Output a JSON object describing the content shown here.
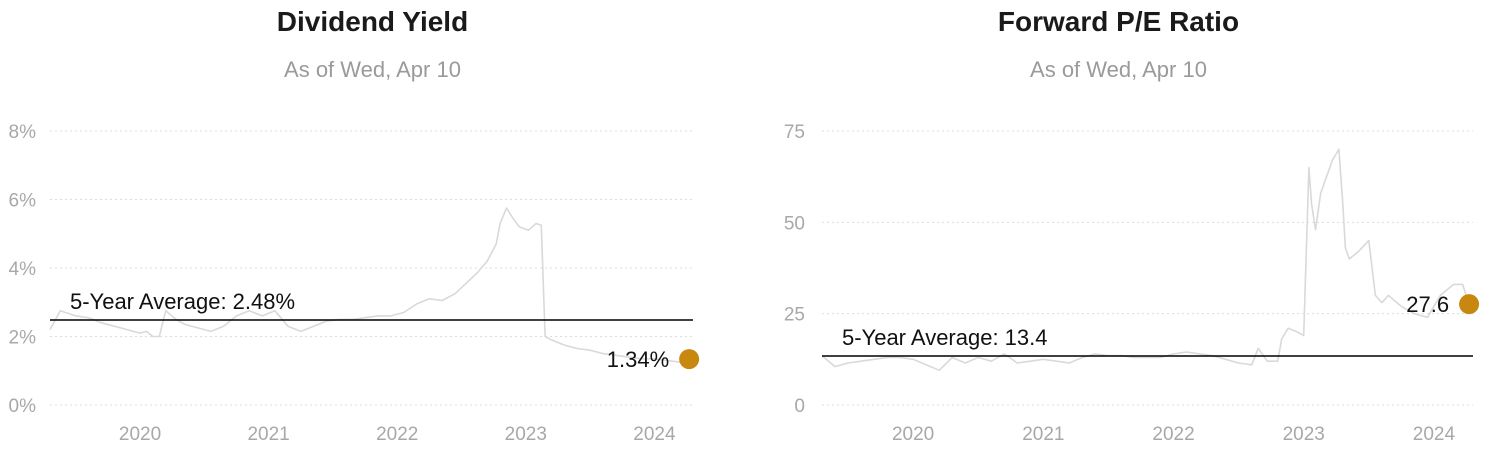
{
  "chart_data": [
    {
      "type": "line",
      "title": "Dividend Yield",
      "subtitle": "As of Wed, Apr 10",
      "y_unit": "%",
      "ylim": [
        0,
        8
      ],
      "yticks": [
        0,
        2,
        4,
        6,
        8
      ],
      "ytick_labels": [
        "0%",
        "2%",
        "4%",
        "6%",
        "8%"
      ],
      "xlim": [
        2019.3,
        2024.3
      ],
      "xticks": [
        2020,
        2021,
        2022,
        2023,
        2024
      ],
      "xtick_labels": [
        "2020",
        "2021",
        "2022",
        "2023",
        "2024"
      ],
      "grid": true,
      "average": {
        "label": "5-Year Average: 2.48%",
        "value": 2.48
      },
      "current": {
        "label": "1.34%",
        "x": 2024.27,
        "value": 1.34
      },
      "series": [
        {
          "x": [
            2019.3,
            2019.38,
            2019.5,
            2019.6,
            2019.7,
            2019.8,
            2019.9,
            2020.0,
            2020.05,
            2020.1,
            2020.15,
            2020.2,
            2020.28,
            2020.35,
            2020.45,
            2020.55,
            2020.65,
            2020.75,
            2020.85,
            2020.95,
            2021.05,
            2021.15,
            2021.25,
            2021.35,
            2021.45,
            2021.55,
            2021.65,
            2021.75,
            2021.85,
            2021.95,
            2022.05,
            2022.15,
            2022.25,
            2022.35,
            2022.45,
            2022.55,
            2022.62,
            2022.7,
            2022.77,
            2022.8,
            2022.85,
            2022.9,
            2022.95,
            2023.02,
            2023.08,
            2023.12,
            2023.15,
            2023.2,
            2023.3,
            2023.4,
            2023.5,
            2023.6,
            2023.7,
            2023.8,
            2023.9,
            2024.0,
            2024.1,
            2024.2,
            2024.27
          ],
          "values": [
            2.2,
            2.75,
            2.6,
            2.55,
            2.4,
            2.3,
            2.2,
            2.1,
            2.15,
            2.0,
            2.0,
            2.75,
            2.5,
            2.35,
            2.25,
            2.15,
            2.3,
            2.6,
            2.75,
            2.6,
            2.75,
            2.3,
            2.15,
            2.3,
            2.45,
            2.5,
            2.5,
            2.55,
            2.6,
            2.6,
            2.7,
            2.95,
            3.1,
            3.05,
            3.25,
            3.6,
            3.85,
            4.2,
            4.7,
            5.3,
            5.75,
            5.45,
            5.2,
            5.1,
            5.3,
            5.25,
            2.0,
            1.9,
            1.75,
            1.65,
            1.6,
            1.5,
            1.45,
            1.4,
            1.35,
            1.35,
            1.3,
            1.25,
            1.34
          ]
        }
      ]
    },
    {
      "type": "line",
      "title": "Forward P/E Ratio",
      "subtitle": "As of Wed, Apr 10",
      "ylim": [
        0,
        75
      ],
      "yticks": [
        0,
        25,
        50,
        75
      ],
      "ytick_labels": [
        "0",
        "25",
        "50",
        "75"
      ],
      "xlim": [
        2019.3,
        2024.3
      ],
      "xticks": [
        2020,
        2021,
        2022,
        2023,
        2024
      ],
      "xtick_labels": [
        "2020",
        "2021",
        "2022",
        "2023",
        "2024"
      ],
      "grid": true,
      "average": {
        "label": "5-Year Average: 13.4",
        "value": 13.4
      },
      "current": {
        "label": "27.6",
        "x": 2024.27,
        "value": 27.6
      },
      "series": [
        {
          "x": [
            2019.3,
            2019.4,
            2019.5,
            2019.6,
            2019.7,
            2019.8,
            2019.9,
            2020.0,
            2020.1,
            2020.2,
            2020.3,
            2020.4,
            2020.5,
            2020.6,
            2020.7,
            2020.8,
            2020.9,
            2021.0,
            2021.1,
            2021.2,
            2021.3,
            2021.4,
            2021.5,
            2021.6,
            2021.7,
            2021.8,
            2021.9,
            2022.0,
            2022.1,
            2022.2,
            2022.3,
            2022.4,
            2022.5,
            2022.6,
            2022.65,
            2022.72,
            2022.8,
            2022.83,
            2022.88,
            2022.95,
            2023.0,
            2023.04,
            2023.06,
            2023.09,
            2023.13,
            2023.17,
            2023.22,
            2023.27,
            2023.3,
            2023.32,
            2023.35,
            2023.42,
            2023.5,
            2023.55,
            2023.6,
            2023.65,
            2023.75,
            2023.85,
            2023.95,
            2024.05,
            2024.15,
            2024.22,
            2024.27
          ],
          "values": [
            13.5,
            10.5,
            11.5,
            12,
            12.5,
            13,
            13,
            12.5,
            11,
            9.5,
            13,
            11.5,
            13,
            12,
            14,
            11.5,
            12,
            12.5,
            12,
            11.5,
            13,
            14,
            13.5,
            13.5,
            13,
            13,
            13,
            14,
            14.5,
            14,
            13.5,
            12.5,
            11.5,
            11,
            15.5,
            12,
            12,
            18,
            21,
            20,
            19,
            65,
            55,
            48,
            58,
            62,
            67,
            70,
            55,
            43,
            40,
            42,
            45,
            30,
            28,
            30,
            27,
            25,
            24,
            30,
            33,
            33,
            27.6
          ]
        }
      ]
    }
  ],
  "colors": {
    "line": "#d9d9d9",
    "grid": "#dddddd",
    "average_line": "#000000",
    "marker": "#c8880f",
    "tick_label": "#a8a8a8"
  }
}
